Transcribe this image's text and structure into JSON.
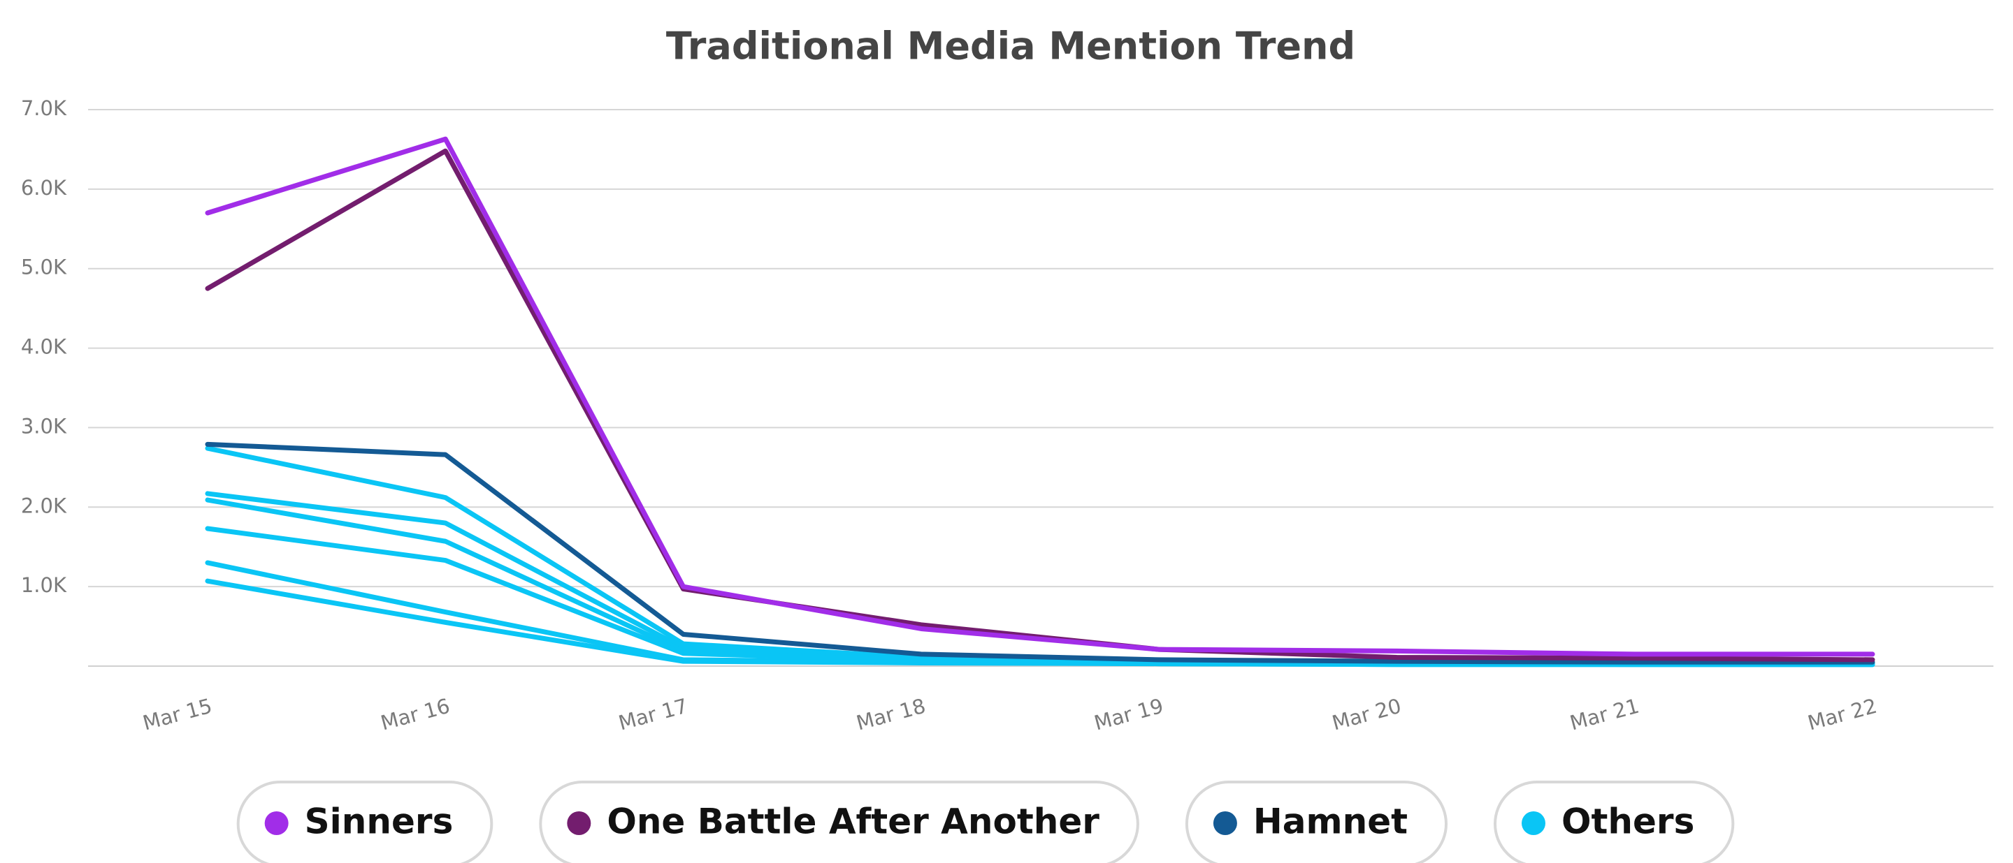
{
  "chart_data": {
    "type": "line",
    "title": "Traditional  Media Mention Trend",
    "categories": [
      "Mar 15",
      "Mar 16",
      "Mar 17",
      "Mar 18",
      "Mar 19",
      "Mar 20",
      "Mar 21",
      "Mar 22"
    ],
    "ylim": [
      0,
      7000
    ],
    "yticks": [
      {
        "value": 1000,
        "label": "1.0K"
      },
      {
        "value": 2000,
        "label": "2.0K"
      },
      {
        "value": 3000,
        "label": "3.0K"
      },
      {
        "value": 4000,
        "label": "4.0K"
      },
      {
        "value": 5000,
        "label": "5.0K"
      },
      {
        "value": 6000,
        "label": "6.0K"
      },
      {
        "value": 7000,
        "label": "7.0K"
      }
    ],
    "grid": true,
    "series": [
      {
        "name": "Sinners",
        "color": "#a12de8",
        "values": [
          5700,
          6630,
          1000,
          470,
          210,
          190,
          150,
          150
        ]
      },
      {
        "name": "One Battle After Another",
        "color": "#731d6e",
        "values": [
          4750,
          6480,
          970,
          520,
          210,
          110,
          100,
          80
        ]
      },
      {
        "name": "Hamnet",
        "color": "#145a94",
        "values": [
          2790,
          2660,
          400,
          150,
          80,
          60,
          50,
          50
        ]
      },
      {
        "name": "Others",
        "color": "#0ac5f5",
        "values": [
          [
            2740,
            2120,
            280,
            110,
            60,
            50,
            30,
            30
          ],
          [
            2170,
            1800,
            230,
            90,
            50,
            40,
            30,
            30
          ],
          [
            2090,
            1570,
            190,
            80,
            50,
            40,
            30,
            30
          ],
          [
            1730,
            1330,
            160,
            70,
            40,
            30,
            20,
            20
          ],
          [
            1300,
            680,
            80,
            50,
            30,
            20,
            20,
            20
          ],
          [
            1070,
            550,
            60,
            40,
            30,
            20,
            20,
            20
          ]
        ]
      }
    ]
  }
}
